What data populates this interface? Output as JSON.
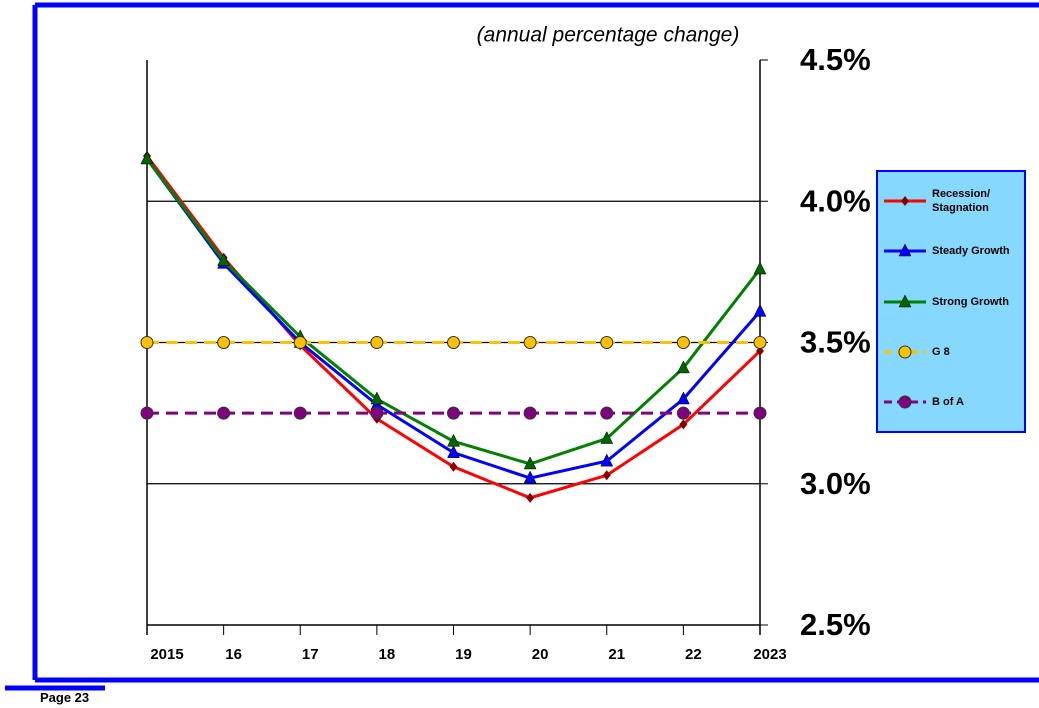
{
  "chart_data": {
    "type": "line",
    "subtitle": "(annual percentage change)",
    "categories": [
      "2015",
      "16",
      "17",
      "18",
      "19",
      "20",
      "21",
      "22",
      "2023"
    ],
    "series": [
      {
        "name": "Recession/ Stagnation",
        "color": "#ff0000",
        "marker": "diamond",
        "dash": false,
        "values": [
          4.16,
          3.8,
          3.49,
          3.23,
          3.06,
          2.95,
          3.03,
          3.21,
          3.47
        ]
      },
      {
        "name": "Steady Growth",
        "color": "#0000ff",
        "marker": "triangle",
        "dash": false,
        "values": [
          4.15,
          3.78,
          3.5,
          3.28,
          3.11,
          3.02,
          3.08,
          3.3,
          3.61
        ]
      },
      {
        "name": "Strong Growth",
        "color": "#008000",
        "marker": "triangle",
        "dash": false,
        "values": [
          4.15,
          3.79,
          3.52,
          3.3,
          3.15,
          3.07,
          3.16,
          3.41,
          3.76
        ]
      },
      {
        "name": "G 8",
        "color": "#ffc000",
        "marker": "circle",
        "dash": true,
        "values": [
          3.5,
          3.5,
          3.5,
          3.5,
          3.5,
          3.5,
          3.5,
          3.5,
          3.5
        ]
      },
      {
        "name": "B of A",
        "color": "#800080",
        "marker": "circle",
        "dash": true,
        "values": [
          3.25,
          3.25,
          3.25,
          3.25,
          3.25,
          3.25,
          3.25,
          3.25,
          3.25
        ]
      }
    ],
    "ylim": [
      2.5,
      4.5
    ],
    "yticks": [
      {
        "value": 2.5,
        "label": "2.5%"
      },
      {
        "value": 3.0,
        "label": "3.0%"
      },
      {
        "value": 3.5,
        "label": "3.5%"
      },
      {
        "value": 4.0,
        "label": "4.0%"
      },
      {
        "value": 4.5,
        "label": "4.5%"
      }
    ],
    "grid": true,
    "legend": "right"
  },
  "footer": "Page 23"
}
